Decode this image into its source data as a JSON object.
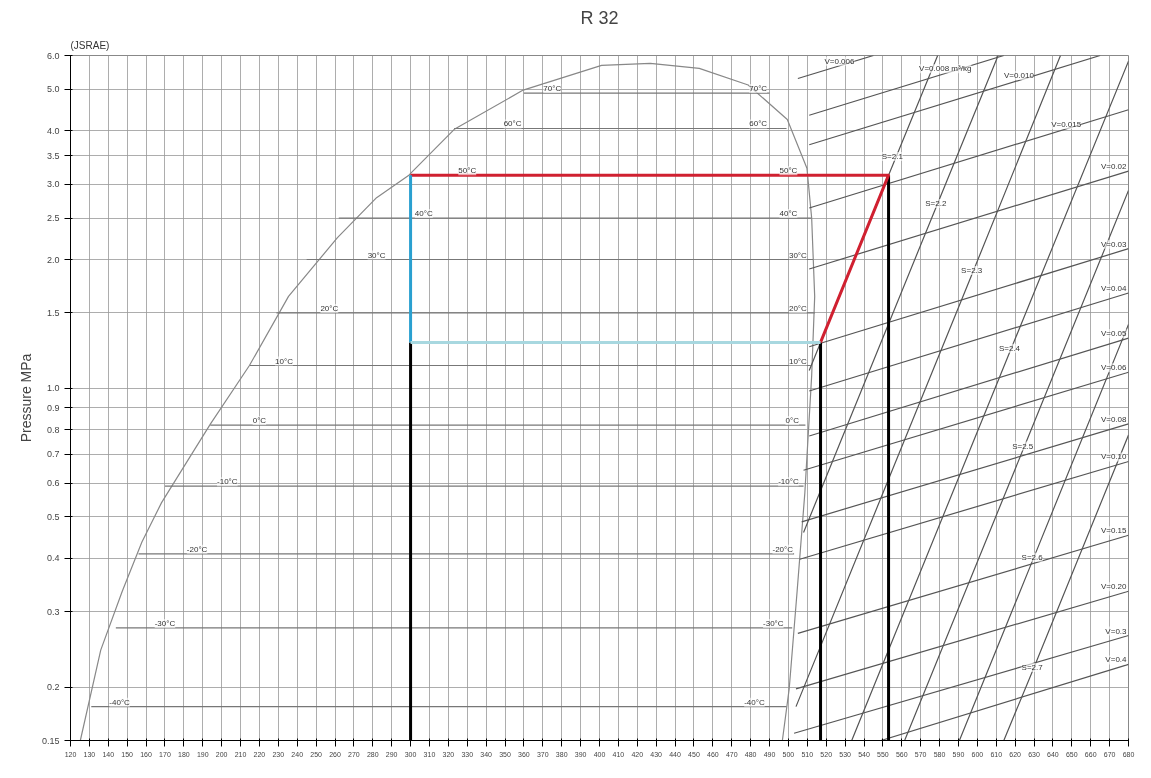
{
  "chart_data": {
    "type": "line",
    "title": "R 32",
    "ylabel": "Pressure MPa",
    "log": "y",
    "grid": true,
    "xlim": [
      120,
      680
    ],
    "xticks": [
      120,
      130,
      140,
      150,
      160,
      170,
      180,
      190,
      200,
      210,
      220,
      230,
      240,
      250,
      260,
      270,
      280,
      290,
      300,
      310,
      320,
      330,
      340,
      350,
      360,
      370,
      380,
      390,
      400,
      410,
      420,
      430,
      440,
      450,
      460,
      470,
      480,
      490,
      500,
      510,
      520,
      530,
      540,
      550,
      560,
      570,
      580,
      590,
      600,
      610,
      620,
      630,
      640,
      650,
      660,
      670,
      680
    ],
    "ylim": [
      0.15,
      6.0
    ],
    "yticks": [
      0.15,
      0.2,
      0.3,
      0.4,
      0.5,
      0.6,
      0.7,
      0.8,
      0.9,
      {
        "value": 1.0,
        "label": "1.0"
      },
      1.5,
      {
        "value": 2.0,
        "label": "2.0"
      },
      2.5,
      {
        "value": 3.0,
        "label": "3.0"
      },
      3.5,
      {
        "value": 4.0,
        "label": "4.0"
      },
      {
        "value": 5.0,
        "label": "5.0"
      },
      {
        "value": 6.0,
        "label": "6.0"
      }
    ],
    "series": [
      {
        "color": "#888888",
        "x": [
          125.2,
          136.0,
          147.4,
          157.8,
          168.2,
          181.1,
          194.1,
          214.7,
          235.4,
          261.3,
          282.0,
          299.1,
          323.4,
          359.6,
          401.1,
          426.9,
          452.8,
          478.7,
          499.4,
          509.8,
          512.3,
          513.9,
          512.3,
          508.7,
          504.6,
          500.4,
          496.8
        ],
        "values": [
          0.15,
          0.244,
          0.335,
          0.437,
          0.54,
          0.667,
          0.825,
          1.13,
          1.64,
          2.25,
          2.79,
          3.15,
          4.04,
          4.98,
          5.69,
          5.75,
          5.6,
          5.12,
          4.25,
          3.27,
          2.5,
          1.64,
          1.07,
          0.57,
          0.335,
          0.198,
          0.15
        ]
      },
      {
        "color": "#555555",
        "x": [
          511,
          553,
          579
        ],
        "values": [
          1.1,
          3.15,
          6.0
        ]
      },
      {
        "color": "#555555",
        "x": [
          508,
          578,
          611
        ],
        "values": [
          0.46,
          2.64,
          6.0
        ]
      },
      {
        "color": "#555555",
        "x": [
          504,
          597,
          644
        ],
        "values": [
          0.18,
          1.84,
          6.0
        ]
      },
      {
        "color": "#555555",
        "x": [
          533.5,
          617,
          680
        ],
        "values": [
          0.15,
          1.21,
          5.82
        ]
      },
      {
        "color": "#555555",
        "x": [
          561.5,
          624,
          680
        ],
        "values": [
          0.15,
          0.715,
          2.9
        ]
      },
      {
        "color": "#555555",
        "x": [
          590.5,
          629,
          680
        ],
        "values": [
          0.15,
          0.393,
          1.41
        ]
      },
      {
        "color": "#555555",
        "x": [
          614,
          629,
          680
        ],
        "values": [
          0.15,
          0.217,
          0.777
        ]
      },
      {
        "color": "#555555",
        "x": [
          505,
          545
        ],
        "values": [
          5.3,
          6.0
        ]
      },
      {
        "color": "#555555",
        "x": [
          511,
          614
        ],
        "values": [
          4.35,
          6.0
        ]
      },
      {
        "color": "#555555",
        "x": [
          511,
          665
        ],
        "values": [
          3.71,
          6.0
        ]
      },
      {
        "color": "#555555",
        "x": [
          511,
          680
        ],
        "values": [
          2.64,
          4.48
        ]
      },
      {
        "color": "#555555",
        "x": [
          511,
          680
        ],
        "values": [
          1.9,
          3.22
        ]
      },
      {
        "color": "#555555",
        "x": [
          511,
          680
        ],
        "values": [
          1.25,
          2.12
        ]
      },
      {
        "color": "#555555",
        "x": [
          511,
          680
        ],
        "values": [
          0.985,
          1.67
        ]
      },
      {
        "color": "#555555",
        "x": [
          511,
          680
        ],
        "values": [
          0.773,
          1.31
        ]
      },
      {
        "color": "#555555",
        "x": [
          508,
          680
        ],
        "values": [
          0.643,
          1.09
        ]
      },
      {
        "color": "#555555",
        "x": [
          507,
          680
        ],
        "values": [
          0.487,
          0.825
        ]
      },
      {
        "color": "#555555",
        "x": [
          506,
          680
        ],
        "values": [
          0.398,
          0.674
        ]
      },
      {
        "color": "#555555",
        "x": [
          505,
          680
        ],
        "values": [
          0.267,
          0.453
        ]
      },
      {
        "color": "#555555",
        "x": [
          504,
          680
        ],
        "values": [
          0.198,
          0.335
        ]
      },
      {
        "color": "#555555",
        "x": [
          503,
          680
        ],
        "values": [
          0.156,
          0.264
        ]
      },
      {
        "color": "#555555",
        "x": [
          549,
          680
        ],
        "values": [
          0.15,
          0.226
        ]
      },
      {
        "color": "#777777",
        "x": [
          360,
          490
        ],
        "values": [
          4.9,
          4.9
        ]
      },
      {
        "color": "#777777",
        "x": [
          323,
          499
        ],
        "values": [
          4.05,
          4.05
        ]
      },
      {
        "color": "#777777",
        "x": [
          262,
          512
        ],
        "values": [
          2.5,
          2.5
        ]
      },
      {
        "color": "#777777",
        "x": [
          245,
          513
        ],
        "values": [
          2.0,
          2.0
        ]
      },
      {
        "color": "#777777",
        "x": [
          229,
          514
        ],
        "values": [
          1.5,
          1.5
        ]
      },
      {
        "color": "#777777",
        "x": [
          215,
          512
        ],
        "values": [
          1.13,
          1.13
        ]
      },
      {
        "color": "#777777",
        "x": [
          194,
          509
        ],
        "values": [
          0.82,
          0.82
        ]
      },
      {
        "color": "#777777",
        "x": [
          170,
          508
        ],
        "values": [
          0.59,
          0.59
        ]
      },
      {
        "color": "#777777",
        "x": [
          156,
          503
        ],
        "values": [
          0.41,
          0.41
        ]
      },
      {
        "color": "#777777",
        "x": [
          144,
          502
        ],
        "values": [
          0.275,
          0.275
        ]
      },
      {
        "color": "#777777",
        "x": [
          131,
          499
        ],
        "values": [
          0.18,
          0.18
        ]
      },
      {
        "color": "#000000",
        "x": [
          300,
          300
        ],
        "values": [
          0.15,
          1.28
        ]
      },
      {
        "color": "#000000",
        "x": [
          517,
          517
        ],
        "values": [
          0.15,
          1.28
        ]
      },
      {
        "color": "#000000",
        "x": [
          553,
          553
        ],
        "values": [
          0.15,
          3.15
        ]
      },
      {
        "color": "#d02030",
        "x": [
          300,
          553,
          517
        ],
        "values": [
          3.15,
          3.15,
          1.28
        ]
      },
      {
        "color": "#2aa0d0",
        "x": [
          300,
          300
        ],
        "values": [
          3.15,
          1.28
        ]
      },
      {
        "color": "#a8d8e0",
        "x": [
          300,
          517
        ],
        "values": [
          1.28,
          1.28
        ]
      }
    ],
    "annotations": [
      "(JSRAE)",
      {
        "text": "70°C",
        "x": 375,
        "y": 4.9
      },
      {
        "text": "70°C",
        "x": 484,
        "y": 4.9
      },
      {
        "text": "60°C",
        "x": 354,
        "y": 4.05
      },
      {
        "text": "60°C",
        "x": 484,
        "y": 4.05
      },
      {
        "text": "50°C",
        "x": 330,
        "y": 3.15
      },
      {
        "text": "50°C",
        "x": 500,
        "y": 3.15
      },
      {
        "text": "40°C",
        "x": 307,
        "y": 2.5
      },
      {
        "text": "40°C",
        "x": 500,
        "y": 2.5
      },
      {
        "text": "30°C",
        "x": 282,
        "y": 2.0
      },
      {
        "text": "30°C",
        "x": 505,
        "y": 2.0
      },
      {
        "text": "20°C",
        "x": 257,
        "y": 1.5
      },
      {
        "text": "20°C",
        "x": 505,
        "y": 1.5
      },
      {
        "text": "10°C",
        "x": 233,
        "y": 1.13
      },
      {
        "text": "10°C",
        "x": 505,
        "y": 1.13
      },
      {
        "text": "0°C",
        "x": 220,
        "y": 0.82
      },
      {
        "text": "0°C",
        "x": 502,
        "y": 0.82
      },
      {
        "text": "-10°C",
        "x": 203,
        "y": 0.59
      },
      {
        "text": "-10°C",
        "x": 500,
        "y": 0.59
      },
      {
        "text": "-20°C",
        "x": 187,
        "y": 0.41
      },
      {
        "text": "-20°C",
        "x": 497,
        "y": 0.41
      },
      {
        "text": "-30°C",
        "x": 170,
        "y": 0.275
      },
      {
        "text": "-30°C",
        "x": 492,
        "y": 0.275
      },
      {
        "text": "-40°C",
        "x": 146,
        "y": 0.18
      },
      {
        "text": "-40°C",
        "x": 482,
        "y": 0.18
      },
      {
        "text": "S=2.1",
        "x": 555,
        "y": 3.4
      },
      {
        "text": "S=2.2",
        "x": 578,
        "y": 2.64
      },
      {
        "text": "S=2.3",
        "x": 597,
        "y": 1.84
      },
      {
        "text": "S=2.4",
        "x": 617,
        "y": 1.21
      },
      {
        "text": "S=2.5",
        "x": 624,
        "y": 0.715
      },
      {
        "text": "S=2.6",
        "x": 629,
        "y": 0.393
      },
      {
        "text": "S=2.7",
        "x": 629,
        "y": 0.217
      },
      {
        "text": "V=0.006",
        "x": 527,
        "y": 5.68
      },
      {
        "text": "V=0.008 m³/kg",
        "x": 583,
        "y": 5.45
      },
      {
        "text": "V=0.010",
        "x": 622,
        "y": 5.26
      },
      {
        "text": "V=0.015",
        "x": 647,
        "y": 4.04
      },
      {
        "text": "V=0.02",
        "x": 680,
        "y": 3.22
      },
      {
        "text": "V=0.03",
        "x": 680,
        "y": 2.12
      },
      {
        "text": "V=0.04",
        "x": 680,
        "y": 1.67
      },
      {
        "text": "V=0.05",
        "x": 680,
        "y": 1.31
      },
      {
        "text": "V=0.06",
        "x": 680,
        "y": 1.09
      },
      {
        "text": "V=0.08",
        "x": 680,
        "y": 0.825
      },
      {
        "text": "V=0.10",
        "x": 680,
        "y": 0.674
      },
      {
        "text": "V=0.15",
        "x": 680,
        "y": 0.453
      },
      {
        "text": "V=0.20",
        "x": 680,
        "y": 0.335
      },
      {
        "text": "V=0.3",
        "x": 680,
        "y": 0.264
      },
      {
        "text": "V=0.4",
        "x": 680,
        "y": 0.226
      }
    ]
  }
}
